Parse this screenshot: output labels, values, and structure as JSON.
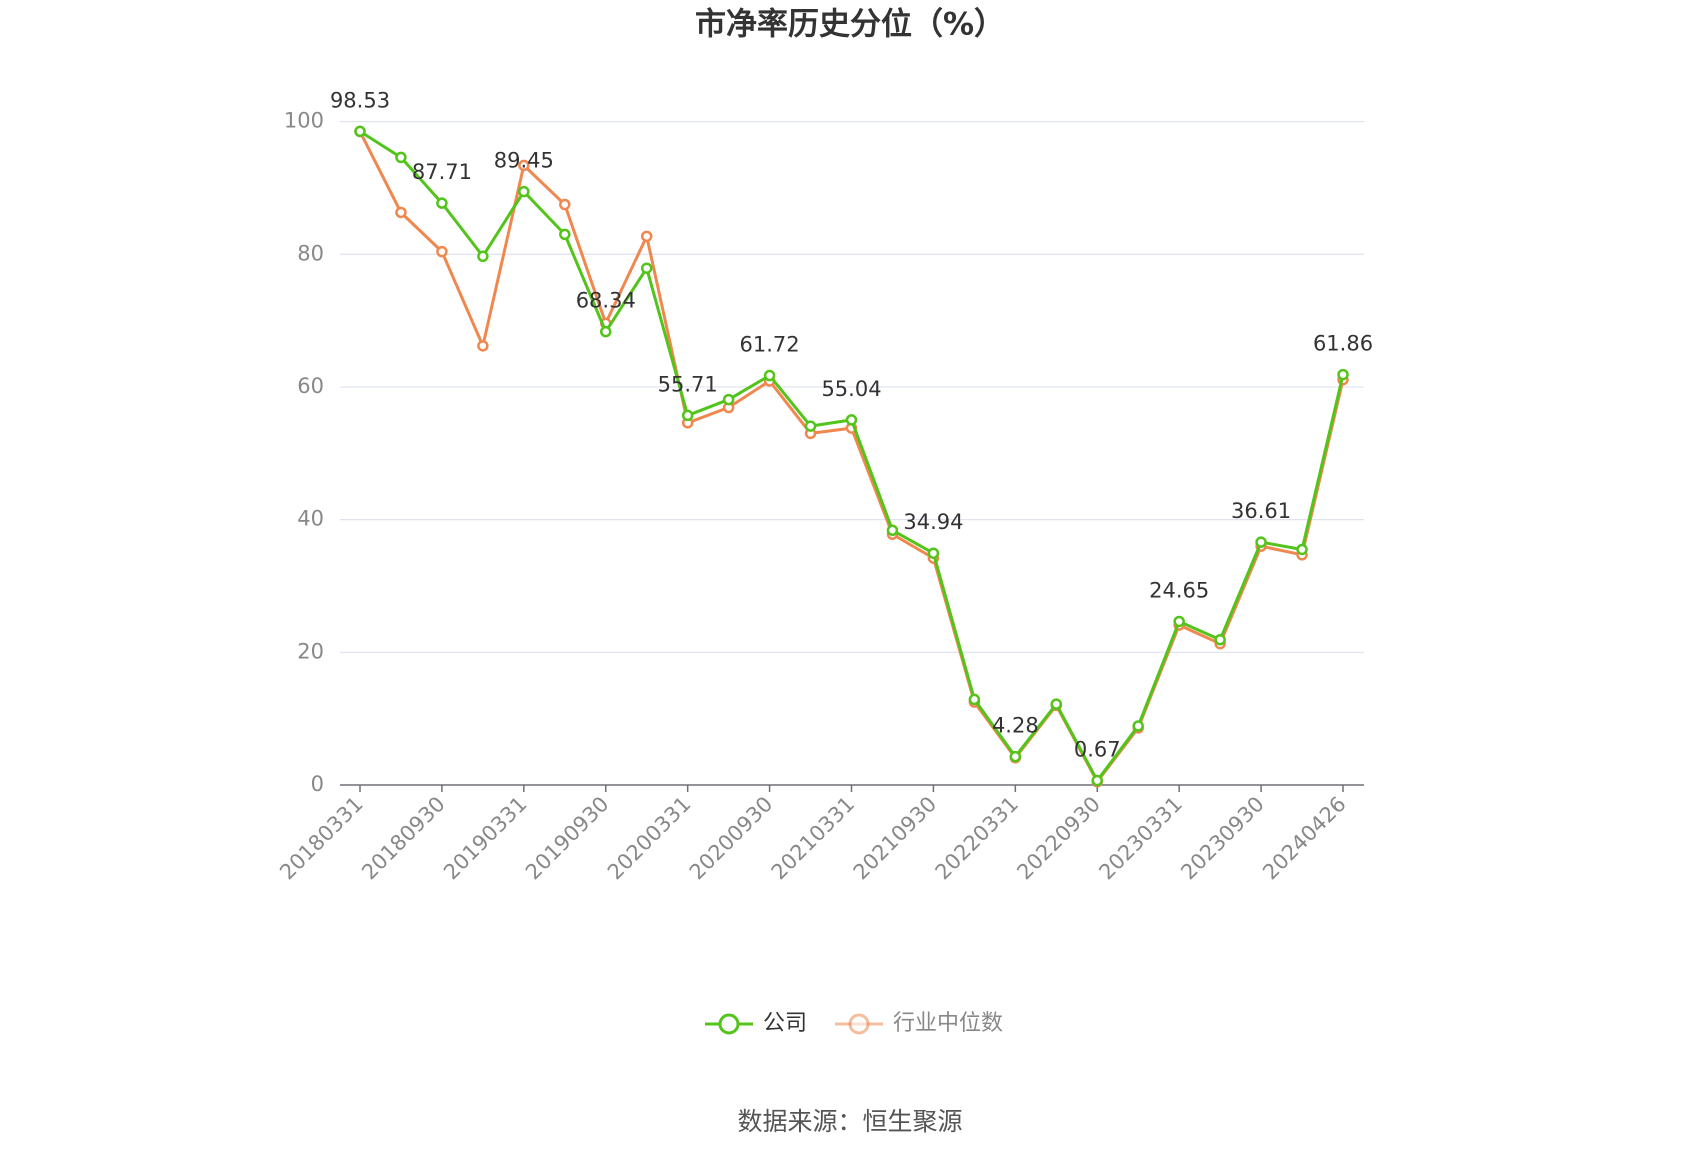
{
  "chart_data": {
    "type": "line",
    "title": "市净率历史分位（%）",
    "categories": [
      "20180331",
      null,
      "20180930",
      null,
      "20190331",
      null,
      "20190930",
      null,
      "20200331",
      null,
      "20200930",
      null,
      "20210331",
      null,
      "20210930",
      null,
      "20220331",
      null,
      "20220930",
      null,
      "20230331",
      null,
      "20230930",
      null,
      "20240426"
    ],
    "series": [
      {
        "name": "公司",
        "color": "#52c41a",
        "values": [
          98.53,
          94.6,
          87.71,
          79.7,
          89.45,
          83.0,
          68.34,
          77.9,
          55.71,
          58.1,
          61.72,
          54.1,
          55.04,
          38.4,
          34.94,
          12.9,
          4.28,
          12.2,
          0.67,
          8.9,
          24.65,
          21.9,
          36.61,
          35.5,
          61.86
        ],
        "value_labels": [
          "98.53",
          null,
          "87.71",
          null,
          "89.45",
          null,
          "68.34",
          null,
          "55.71",
          null,
          "61.72",
          null,
          "55.04",
          null,
          "34.94",
          null,
          "4.28",
          null,
          "0.67",
          null,
          "24.65",
          null,
          "36.61",
          null,
          "61.86"
        ]
      },
      {
        "name": "行业中位数",
        "color": "#f0874f",
        "values": [
          98.5,
          86.3,
          80.4,
          66.2,
          93.4,
          87.5,
          69.6,
          82.7,
          54.6,
          56.9,
          60.9,
          53.0,
          53.8,
          37.8,
          34.2,
          12.5,
          4.1,
          12.0,
          0.5,
          8.6,
          24.1,
          21.3,
          36.0,
          34.7,
          61.1
        ]
      }
    ],
    "ylim": [
      0,
      100
    ],
    "yticks": [
      0,
      20,
      40,
      60,
      80,
      100
    ],
    "grid": true,
    "source": "数据来源：恒生聚源"
  }
}
